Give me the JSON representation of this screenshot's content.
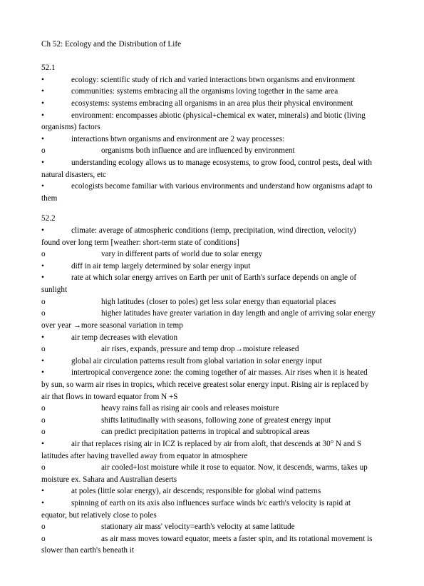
{
  "title": "Ch 52: Ecology and the Distribution of Life",
  "sections": [
    {
      "num": "52.1",
      "items": [
        {
          "level": 1,
          "text": "ecology: scientific study of rich and varied interactions btwn organisms and environment"
        },
        {
          "level": 1,
          "text": "communities: systems embracing all the organisms loving together in the same area"
        },
        {
          "level": 1,
          "text": "ecosystems: systems embracing all organisms in an area plus their physical environment"
        },
        {
          "level": 1,
          "text": "environment: encompasses abiotic (physical+chemical ex water, minerals) and biotic (living",
          "cont": "organisms) factors"
        },
        {
          "level": 1,
          "text": "interactions btwn organisms and environment are 2 way processes:"
        },
        {
          "level": 2,
          "text": "organisms both influence and are influenced by environment"
        },
        {
          "level": 1,
          "text": "understanding ecology allows us to manage ecosystems, to grow food, control pests, deal with",
          "cont": "natural disasters, etc"
        },
        {
          "level": 1,
          "text": "ecologists become familiar with various environments and understand how organisms adapt to",
          "cont": "them"
        }
      ]
    },
    {
      "num": "52.2",
      "items": [
        {
          "level": 1,
          "text": "climate: average of atmospheric conditions (temp, precipitation, wind direction, velocity)",
          "cont": "found over long term [weather: short-term state of conditions]"
        },
        {
          "level": 2,
          "text": "vary in different parts of world due to solar energy"
        },
        {
          "level": 1,
          "text": "diff in air temp largely determined by solar energy input"
        },
        {
          "level": 1,
          "text": "rate at which solar energy arrives on Earth per unit of Earth's surface depends on angle of",
          "cont": "sunlight"
        },
        {
          "level": 2,
          "text": "high latitudes (closer to poles) get less solar energy than equatorial places"
        },
        {
          "level": 2,
          "text": "higher latitudes have greater variation in day length and angle of arriving solar energy",
          "cont": "over year →more seasonal variation in temp"
        },
        {
          "level": 1,
          "text": "air temp decreases with elevation"
        },
        {
          "level": 2,
          "text": "air rises, expands, pressure and temp drop→moisture released"
        },
        {
          "level": 1,
          "text": "global air circulation patterns result from global variation in solar energy input"
        },
        {
          "level": 1,
          "text": "intertropical convergence zone: the coming together of air masses. Air rises when it is heated",
          "cont": "by sun, so warm air rises in tropics, which receive greatest solar energy input. Rising air is replaced by",
          "cont2": "air that flows in toward equator from N +S"
        },
        {
          "level": 2,
          "text": "heavy rains fall as rising air cools and releases moisture"
        },
        {
          "level": 2,
          "text": "shifts latitudinally with seasons, following zone of greatest energy input"
        },
        {
          "level": 2,
          "text": "can predict precipitation patterns in tropical and subtropical areas"
        },
        {
          "level": 1,
          "text": "air that replaces rising air in ICZ is replaced by air from aloft, that descends at 30° N and S",
          "cont": "latitudes after having travelled away from equator in atmosphere"
        },
        {
          "level": 2,
          "text": "air cooled+lost moisture while it rose to equator. Now, it descends, warms, takes up",
          "cont": "moisture ex. Sahara and Australian deserts"
        },
        {
          "level": 1,
          "text": "at poles (little solar energy), air descends; responsible for global wind patterns"
        },
        {
          "level": 1,
          "text": "spinning of earth on its axis also influences surface winds b/c earth's velocity is rapid at",
          "cont": "equator, but relatively close to poles"
        },
        {
          "level": 2,
          "text": "stationary air mass' velocity=earth's velocity at same latitude"
        },
        {
          "level": 2,
          "text": "as air mass moves toward equator, meets a faster spin, and its rotational movement is",
          "cont": "slower than earth's beneath it"
        }
      ]
    }
  ],
  "glyphs": {
    "l1": "•",
    "l2": "o"
  }
}
